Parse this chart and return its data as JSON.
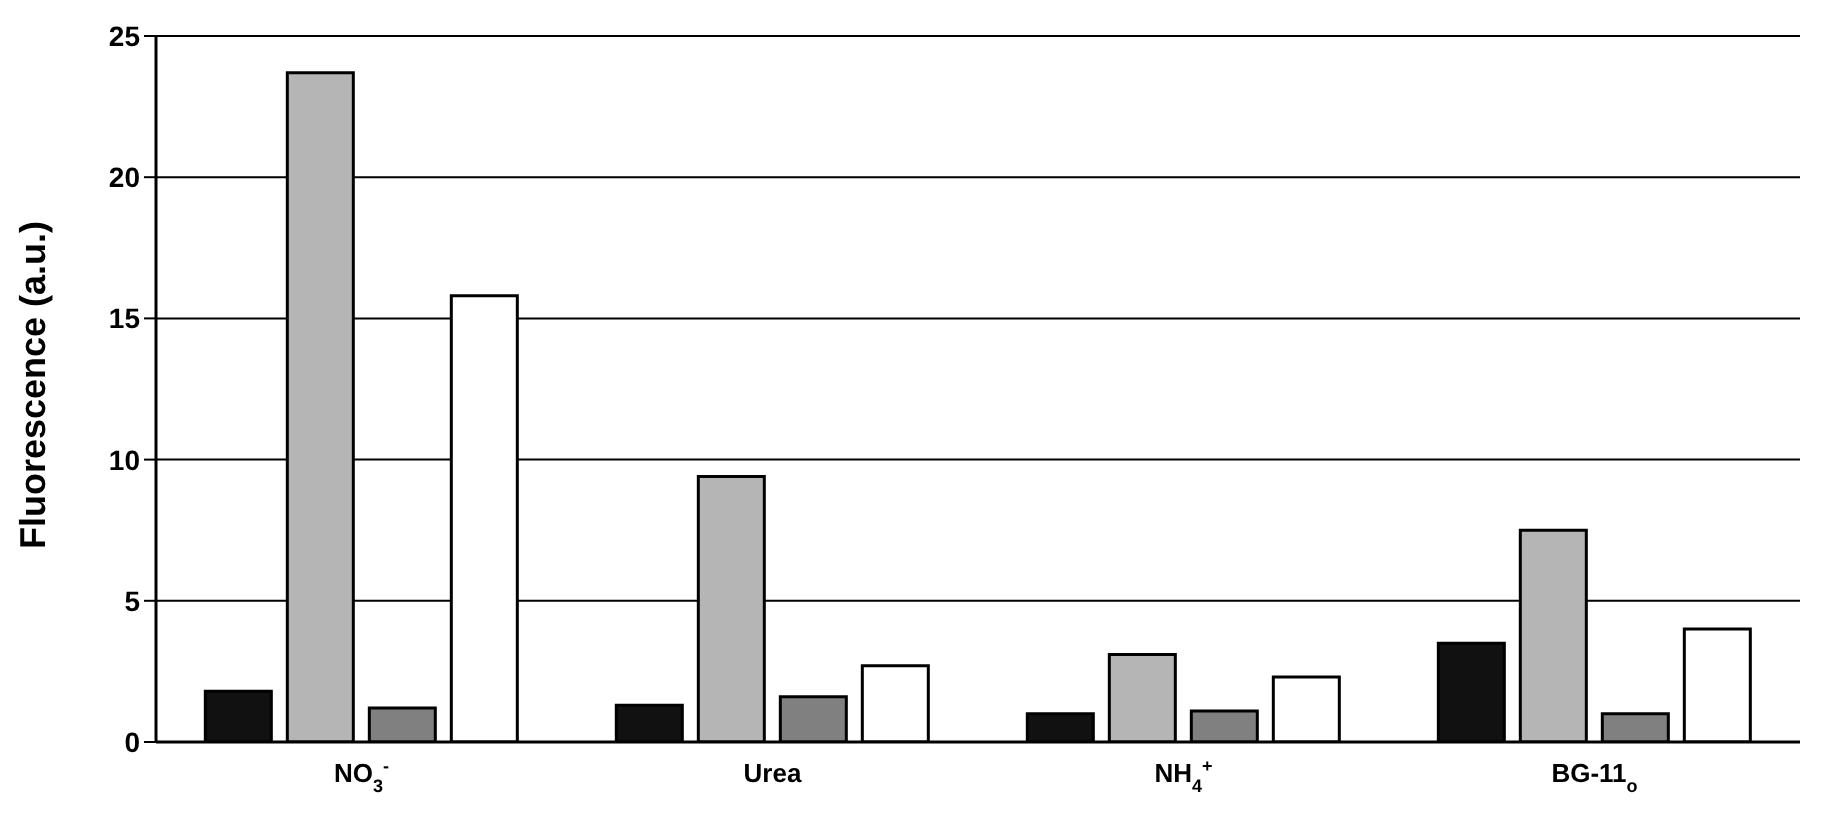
{
  "chart_data": {
    "type": "bar",
    "ylabel": "Fluorescence (a.u.)",
    "categories": [
      "NO$_{3}$$^{-}$",
      "Urea",
      "NH$_{4}$$^{+}$",
      "BG-11$_{o}$"
    ],
    "series": [
      {
        "color": "#111111",
        "values": [
          1.8,
          1.3,
          1.0,
          3.5
        ]
      },
      {
        "color": "#b5b5b5",
        "values": [
          23.7,
          9.4,
          3.1,
          7.5
        ]
      },
      {
        "color": "#808080",
        "values": [
          1.2,
          1.6,
          1.1,
          1.0
        ]
      },
      {
        "color": "#ffffff",
        "values": [
          15.8,
          2.7,
          2.3,
          4.0
        ]
      }
    ],
    "ylim": [
      0,
      25
    ],
    "yticks": [
      0,
      5,
      10,
      15,
      20,
      25
    ],
    "grid": "y"
  }
}
